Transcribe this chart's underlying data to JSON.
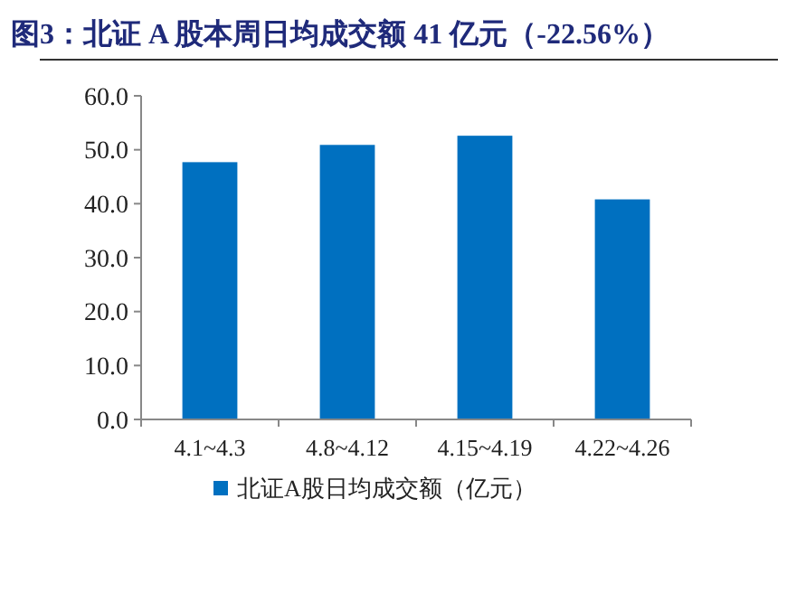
{
  "chart_data": {
    "type": "bar",
    "title": "图3：北证 A 股本周日均成交额 41 亿元（-22.56%）",
    "categories": [
      "4.1~4.3",
      "4.8~4.12",
      "4.15~4.19",
      "4.22~4.26"
    ],
    "series": [
      {
        "name": "北证A股日均成交额（亿元）",
        "color": "#0070c0",
        "values": [
          47.7,
          50.9,
          52.6,
          40.8
        ]
      }
    ],
    "ylim": [
      0,
      60
    ],
    "yticks": [
      {
        "value": 0,
        "label": "0.0"
      },
      {
        "value": 10,
        "label": "10.0"
      },
      {
        "value": 20,
        "label": "20.0"
      },
      {
        "value": 30,
        "label": "30.0"
      },
      {
        "value": 40,
        "label": "40.0"
      },
      {
        "value": 50,
        "label": "50.0"
      },
      {
        "value": 60,
        "label": "60.0"
      }
    ],
    "grid": false,
    "legend": "bottom"
  }
}
